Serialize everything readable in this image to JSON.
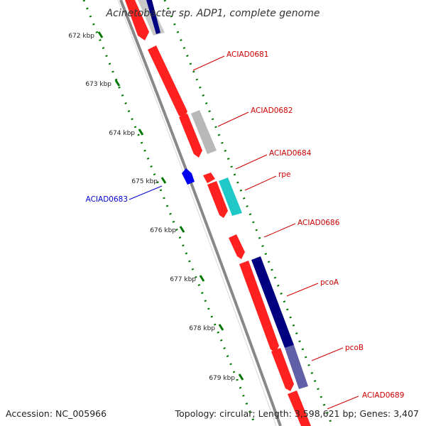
{
  "title": "Acinetobacter sp. ADP1, complete genome",
  "footer": {
    "accession": "Accession: NC_005966",
    "summary": "Topology: circular; Length: 3,598,621 bp; Genes: 3,407"
  },
  "ticks": [
    {
      "label": "672 kbp"
    },
    {
      "label": "673 kbp"
    },
    {
      "label": "674 kbp"
    },
    {
      "label": "675 kbp"
    },
    {
      "label": "676 kbp"
    },
    {
      "label": "677 kbp"
    },
    {
      "label": "678 kbp"
    },
    {
      "label": "679 kbp"
    }
  ],
  "gene_labels": [
    {
      "name": "ACIAD0681",
      "color": "#cc0000"
    },
    {
      "name": "ACIAD0682",
      "color": "#cc0000"
    },
    {
      "name": "ACIAD0684",
      "color": "#cc0000"
    },
    {
      "name": "rpe",
      "color": "#cc0000"
    },
    {
      "name": "ACIAD0686",
      "color": "#cc0000"
    },
    {
      "name": "pcoA",
      "color": "#cc0000"
    },
    {
      "name": "pcoB",
      "color": "#cc0000"
    },
    {
      "name": "ACIAD0689",
      "color": "#cc0000"
    },
    {
      "name": "ACIAD0683",
      "color": "#0000cc"
    }
  ],
  "colors": {
    "backbone": "#888888",
    "forward_cds": "#ff2020",
    "reverse_cds": "#0000ee",
    "blast_grey": "#c0c0c0",
    "blast_teal": "#20c8c8",
    "blast_navy": "#000080",
    "blast_lavender": "#6060a8",
    "tick_green": "#007700"
  }
}
